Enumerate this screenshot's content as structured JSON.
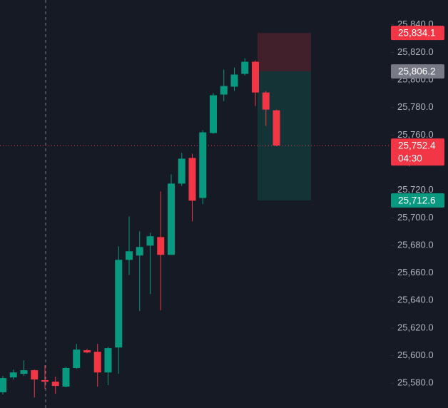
{
  "chart_data": {
    "type": "candlestick",
    "up_color": "#089981",
    "down_color": "#f23645",
    "open": [
      25573.4,
      25584.2,
      25586.8,
      25589.4,
      25582.2,
      25581.1,
      25577.5,
      25591.0,
      25603.9,
      25602.8,
      25587.8,
      25605.9,
      25669.5,
      25672.6,
      25679.8,
      25686.0,
      25673.1,
      25724.8,
      25743.4,
      25714.4,
      25761.5,
      25789.4,
      25795.1,
      25804.4,
      25813.2,
      25790.9,
      25778.0
    ],
    "high": [
      25585.2,
      25589.9,
      25596.6,
      25589.9,
      25593.0,
      25584.7,
      25592.0,
      25608.5,
      25604.9,
      25608.5,
      25606.4,
      25679.3,
      25701.0,
      25690.2,
      25689.1,
      25719.1,
      25731.5,
      25747.0,
      25746.5,
      25763.5,
      25790.4,
      25807.5,
      25809.0,
      25815.7,
      25814.2,
      25792.0,
      25778.5
    ],
    "low": [
      25571.8,
      25582.7,
      25585.2,
      25569.7,
      25576.0,
      25572.3,
      25577.0,
      25590.4,
      25601.8,
      25577.5,
      25578.6,
      25586.8,
      25658.6,
      25632.3,
      25644.7,
      25632.8,
      25673.1,
      25723.2,
      25697.4,
      25709.8,
      25761.0,
      25784.7,
      25792.0,
      25803.3,
      25781.1,
      25766.6,
      25752.0
    ],
    "close": [
      25583.7,
      25587.8,
      25589.4,
      25582.7,
      25581.1,
      25578.0,
      25591.0,
      25604.4,
      25602.3,
      25587.8,
      25605.4,
      25669.5,
      25675.7,
      25678.8,
      25686.6,
      25673.1,
      25724.8,
      25742.9,
      25712.4,
      25762.0,
      25788.9,
      25795.6,
      25803.9,
      25813.2,
      25790.9,
      25778.5,
      25752.4
    ],
    "ylim": [
      25562,
      25858
    ],
    "yticks": [
      {
        "value": 25580,
        "label": "25,580.0"
      },
      {
        "value": 25600,
        "label": "25,600.0"
      },
      {
        "value": 25620,
        "label": "25,620.0"
      },
      {
        "value": 25640,
        "label": "25,640.0"
      },
      {
        "value": 25660,
        "label": "25,660.0"
      },
      {
        "value": 25680,
        "label": "25,680.0"
      },
      {
        "value": 25700,
        "label": "25,700.0"
      },
      {
        "value": 25720,
        "label": "25,720.0"
      },
      {
        "value": 25740,
        "label": "25,740.0"
      },
      {
        "value": 25760,
        "label": "25,760.0"
      },
      {
        "value": 25780,
        "label": "25,780.0"
      },
      {
        "value": 25800,
        "label": "25,800.0"
      },
      {
        "value": 25820,
        "label": "25,820.0"
      },
      {
        "value": 25840,
        "label": "25,840.0"
      }
    ],
    "position": {
      "stop": {
        "value": 25834.1,
        "label": "25,834.1",
        "color": "#f23645"
      },
      "entry": {
        "value": 25806.2,
        "label": "25,806.2",
        "color": "#787b86"
      },
      "target": {
        "value": 25712.6,
        "label": "25,712.6",
        "color": "#089981"
      }
    },
    "last_price": {
      "value": 25752.4,
      "label": "25,752.4",
      "countdown": "04:30",
      "color": "#f23645"
    }
  }
}
